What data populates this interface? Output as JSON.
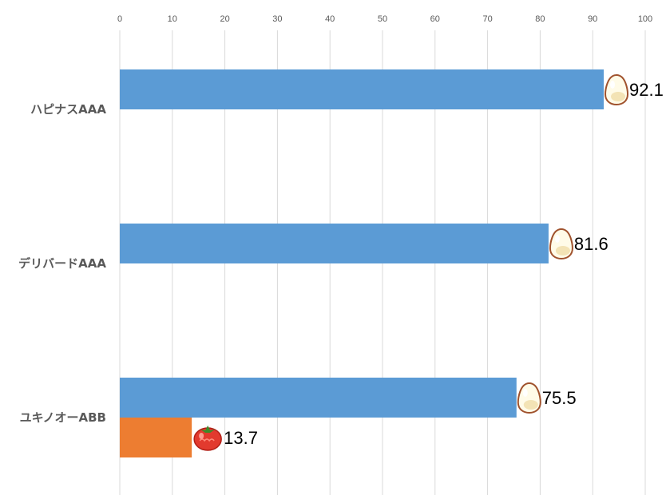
{
  "chart_data": {
    "type": "bar",
    "orientation": "horizontal",
    "xlim": [
      0,
      100
    ],
    "x_ticks": [
      0,
      10,
      20,
      30,
      40,
      50,
      60,
      70,
      80,
      90,
      100
    ],
    "grid": true,
    "categories": [
      "ハピナスAAA",
      "デリバードAAA",
      "ユキノオーABB"
    ],
    "series": [
      {
        "color": "#5b9bd5",
        "icon": "egg-icon",
        "values": [
          92.1,
          81.6,
          75.5
        ]
      },
      {
        "color": "#ed7d31",
        "icon": "tomato-icon",
        "values": [
          null,
          null,
          13.7
        ]
      }
    ]
  }
}
